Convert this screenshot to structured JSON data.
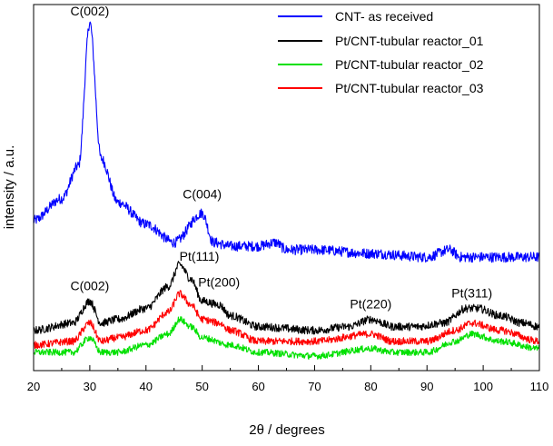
{
  "chart_data": {
    "type": "line",
    "title": "",
    "xlabel": "2θ / degrees",
    "ylabel": "intensity / a.u.",
    "xlim": [
      20,
      110
    ],
    "ylim": [
      0,
      100
    ],
    "x_ticks": [
      "20",
      "30",
      "40",
      "50",
      "60",
      "70",
      "80",
      "90",
      "100",
      "110"
    ],
    "y_ticks_visible": false,
    "grid": false,
    "legend_position": "top-right",
    "series": [
      {
        "name": "CNT- as received",
        "color": "#0000ff",
        "baseline": [
          [
            20,
            41
          ],
          [
            25,
            47
          ],
          [
            28,
            56
          ],
          [
            30,
            95
          ],
          [
            32,
            58
          ],
          [
            35,
            46
          ],
          [
            40,
            40
          ],
          [
            45,
            35
          ],
          [
            50,
            43
          ],
          [
            52,
            35
          ],
          [
            55,
            34
          ],
          [
            60,
            34
          ],
          [
            63,
            35
          ],
          [
            65,
            33
          ],
          [
            70,
            33
          ],
          [
            80,
            32
          ],
          [
            90,
            31
          ],
          [
            94,
            33
          ],
          [
            96,
            31
          ],
          [
            100,
            31
          ],
          [
            110,
            31
          ]
        ],
        "noise": 1.4
      },
      {
        "name": "Pt/CNT-tubular reactor_01",
        "color": "#000000",
        "baseline": [
          [
            20,
            11
          ],
          [
            27,
            13
          ],
          [
            30,
            19
          ],
          [
            32,
            13
          ],
          [
            35,
            14
          ],
          [
            40,
            17
          ],
          [
            44,
            23
          ],
          [
            46,
            29
          ],
          [
            48,
            25
          ],
          [
            50,
            19
          ],
          [
            53,
            18
          ],
          [
            55,
            15
          ],
          [
            60,
            12
          ],
          [
            70,
            11
          ],
          [
            76,
            12
          ],
          [
            80,
            14
          ],
          [
            84,
            12
          ],
          [
            88,
            12
          ],
          [
            93,
            13
          ],
          [
            97,
            17
          ],
          [
            99,
            17
          ],
          [
            103,
            15
          ],
          [
            107,
            13
          ],
          [
            110,
            12
          ]
        ],
        "noise": 1.1
      },
      {
        "name": "Pt/CNT-tubular reactor_02",
        "color": "#00e000",
        "baseline": [
          [
            20,
            5
          ],
          [
            27,
            5
          ],
          [
            30,
            9
          ],
          [
            32,
            5
          ],
          [
            35,
            5
          ],
          [
            40,
            7
          ],
          [
            44,
            10
          ],
          [
            46,
            14
          ],
          [
            48,
            12
          ],
          [
            50,
            9
          ],
          [
            55,
            7
          ],
          [
            60,
            5
          ],
          [
            70,
            4
          ],
          [
            80,
            6
          ],
          [
            84,
            5
          ],
          [
            90,
            5
          ],
          [
            95,
            8
          ],
          [
            98,
            10
          ],
          [
            103,
            8
          ],
          [
            110,
            6
          ]
        ],
        "noise": 0.9
      },
      {
        "name": "Pt/CNT-tubular reactor_03",
        "color": "#ff0000",
        "baseline": [
          [
            20,
            7
          ],
          [
            27,
            8
          ],
          [
            30,
            13
          ],
          [
            32,
            8
          ],
          [
            35,
            9
          ],
          [
            40,
            11
          ],
          [
            44,
            16
          ],
          [
            46,
            21
          ],
          [
            48,
            18
          ],
          [
            50,
            14
          ],
          [
            53,
            13
          ],
          [
            55,
            11
          ],
          [
            60,
            8
          ],
          [
            70,
            8
          ],
          [
            80,
            10
          ],
          [
            84,
            8
          ],
          [
            90,
            8
          ],
          [
            95,
            11
          ],
          [
            98,
            13
          ],
          [
            103,
            11
          ],
          [
            110,
            8
          ]
        ],
        "noise": 1.0
      }
    ],
    "annotations": [
      {
        "text": "C(002)",
        "x": 30,
        "y": 97
      },
      {
        "text": "C(004)",
        "x": 50,
        "y": 47
      },
      {
        "text": "C(002)",
        "x": 30,
        "y": 22
      },
      {
        "text": "Pt(111)",
        "x": 49.5,
        "y": 30
      },
      {
        "text": "Pt(200)",
        "x": 53,
        "y": 23
      },
      {
        "text": "Pt(220)",
        "x": 80,
        "y": 17
      },
      {
        "text": "Pt(311)",
        "x": 98,
        "y": 20
      }
    ]
  }
}
